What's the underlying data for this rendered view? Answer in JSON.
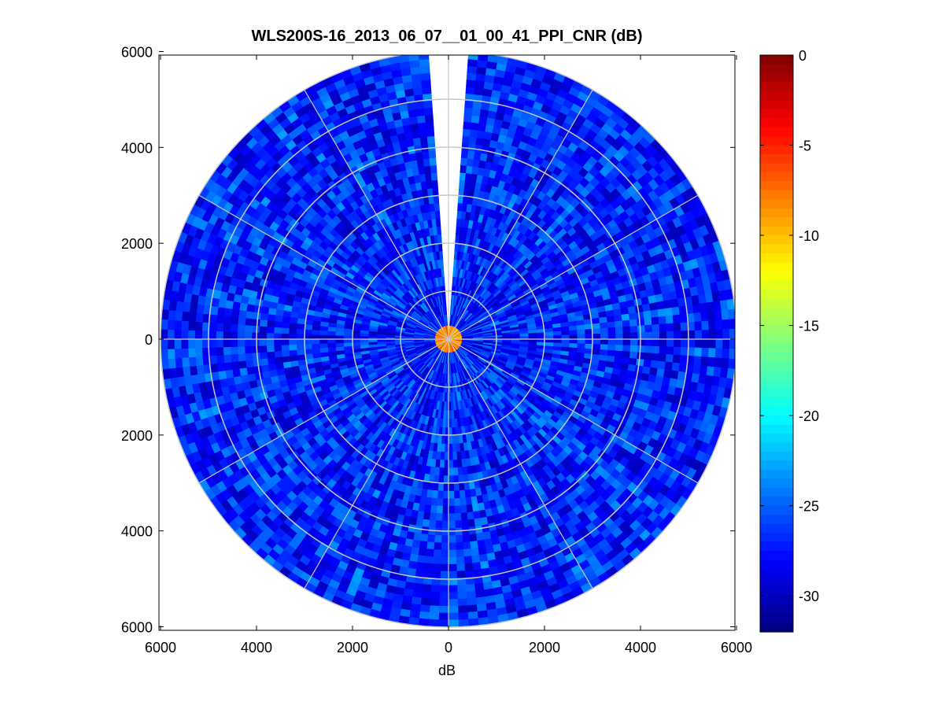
{
  "chart_data": {
    "type": "heatmap",
    "subtype": "polar-ppi",
    "title": "WLS200S-16_2013_06_07__01_00_41_PPI_CNR (dB)",
    "xlabel": "dB",
    "ylabel": "",
    "xlim": [
      -6000,
      6000
    ],
    "ylim": [
      -6000,
      6000
    ],
    "x_ticks": [
      -6000,
      -4000,
      -2000,
      0,
      2000,
      4000,
      6000
    ],
    "x_tick_labels": [
      "6000",
      "4000",
      "2000",
      "0",
      "2000",
      "4000",
      "6000"
    ],
    "y_ticks": [
      6000,
      4000,
      2000,
      0,
      -2000,
      -4000,
      -6000
    ],
    "y_tick_labels": [
      "6000",
      "4000",
      "2000",
      "0",
      "2000",
      "4000",
      "6000"
    ],
    "polar_grid": {
      "rings": [
        1000,
        2000,
        3000,
        4000,
        5000
      ],
      "spokes_deg": [
        0,
        30,
        60,
        90,
        120,
        150,
        180,
        210,
        240,
        270,
        300,
        330
      ]
    },
    "max_range": 6000,
    "missing_sector_deg": [
      -4,
      4
    ],
    "field": {
      "typical_db": -27,
      "range_db": [
        -30,
        -23
      ],
      "near_center_db": [
        -12,
        -5
      ],
      "near_center_radius": 150
    },
    "colorbar": {
      "colormap": "jet",
      "min": -32,
      "max": 0,
      "ticks": [
        0,
        -5,
        -10,
        -15,
        -20,
        -25,
        -30
      ],
      "tick_labels": [
        "0",
        "-5",
        "-10",
        "-15",
        "-20",
        "-25",
        "-30"
      ]
    },
    "grid": true,
    "legend": "none"
  }
}
